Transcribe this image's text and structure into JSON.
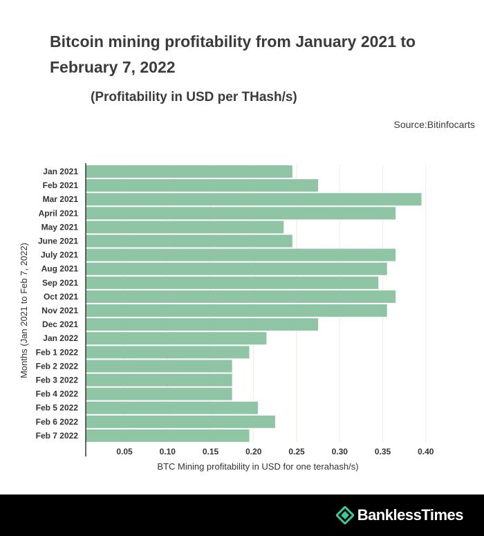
{
  "title": "Bitcoin mining profitability from January 2021 to February 7, 2022",
  "subtitle": "(Profitability in USD per THash/s)",
  "source": "Source:Bitinfocarts",
  "brand": {
    "name": "BanklessTimes",
    "accent": "#3ec99a"
  },
  "colors": {
    "bar": "#8fc4a5",
    "axis": "#333333",
    "grid": "#efeedd"
  },
  "chart_data": {
    "type": "bar",
    "orientation": "horizontal",
    "title": "Bitcoin mining profitability from January 2021 to February 7, 2022",
    "subtitle": "(Profitability in USD per THash/s)",
    "xlabel": "BTC Mining profitability in USD for one terahash/s)",
    "ylabel": "Months (Jan 2021 to Feb 7, 2022)",
    "xlim": [
      0.005,
      0.405
    ],
    "xticks": [
      0.05,
      0.1,
      0.15,
      0.2,
      0.25,
      0.3,
      0.35,
      0.4
    ],
    "xtick_labels": [
      "0.05",
      "0.10",
      "0.15",
      "0.20",
      "0.25",
      "0.30",
      "0.35",
      "0.40"
    ],
    "grid": true,
    "categories": [
      "Jan 2021",
      "Feb 2021",
      "Mar 2021",
      "April 2021",
      "May 2021",
      "June 2021",
      "July 2021",
      "Aug 2021",
      "Sep 2021",
      "Oct 2021",
      "Nov 2021",
      "Dec 2021",
      "Jan 2022",
      "Feb 1 2022",
      "Feb 2 2022",
      "Feb 3 2022",
      "Feb 4 2022",
      "Feb 5 2022",
      "Feb 6 2022",
      "Feb 7 2022"
    ],
    "values": [
      0.245,
      0.275,
      0.395,
      0.365,
      0.235,
      0.245,
      0.365,
      0.355,
      0.345,
      0.365,
      0.355,
      0.275,
      0.215,
      0.195,
      0.175,
      0.175,
      0.175,
      0.205,
      0.225,
      0.195
    ]
  }
}
